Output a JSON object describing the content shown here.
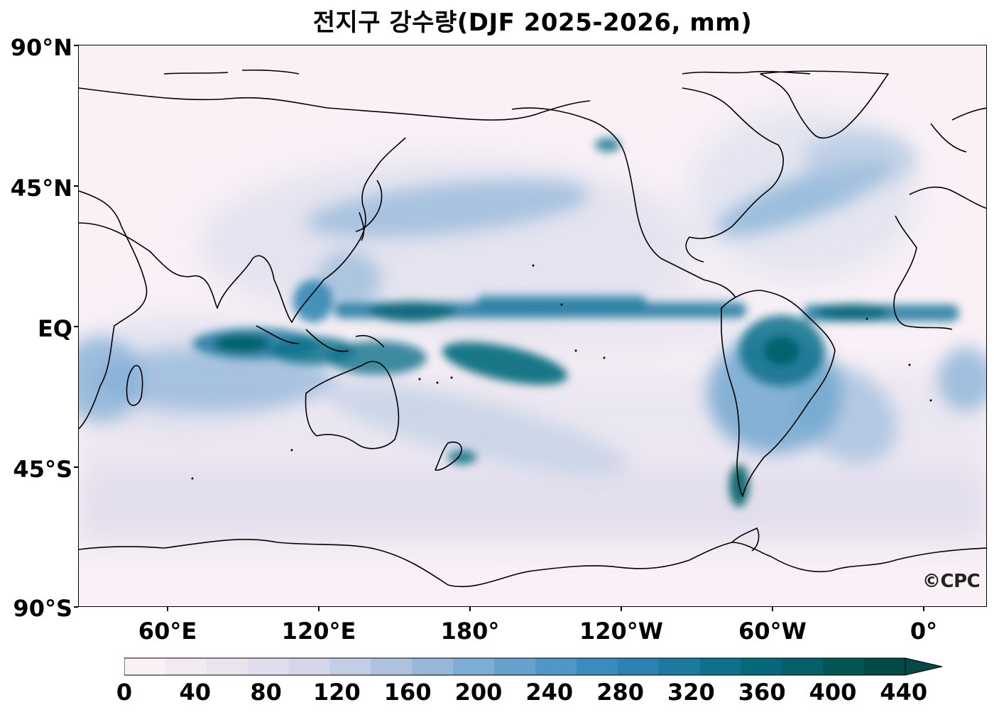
{
  "title": "전지구 강수량(DJF 2025-2026, mm)",
  "map": {
    "projection": "PlateCarree",
    "lat_labels": [
      "90°N",
      "45°N",
      "EQ",
      "45°S",
      "90°S"
    ],
    "lon_labels": [
      "60°E",
      "120°E",
      "180°",
      "120°W",
      "60°W",
      "0°"
    ],
    "credit": "©CPC"
  },
  "colorbar": {
    "ticks": [
      "0",
      "40",
      "80",
      "120",
      "160",
      "200",
      "240",
      "280",
      "320",
      "360",
      "400",
      "440"
    ],
    "colors": [
      "#faf2f7",
      "#f3e9f1",
      "#ebe3ee",
      "#e2ddec",
      "#d4d6e9",
      "#c3cde5",
      "#aec2df",
      "#97b7d9",
      "#7eadd4",
      "#65a2cd",
      "#4f98c6",
      "#3a8cbd",
      "#2b82b0",
      "#1c7a9f",
      "#0f728c",
      "#06697a",
      "#045f68",
      "#035556",
      "#024a45"
    ],
    "extend": "max",
    "units": "mm"
  }
}
